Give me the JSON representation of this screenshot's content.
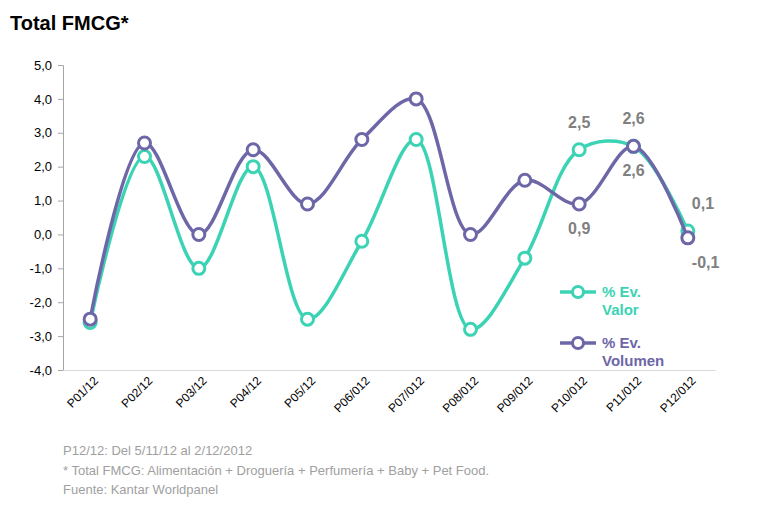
{
  "chart_data": {
    "type": "line",
    "title": "Total FMCG*",
    "categories": [
      "P01/12",
      "P02/12",
      "P03/12",
      "P04/12",
      "P05/12",
      "P06/012",
      "P07/012",
      "P08/012",
      "P09/012",
      "P10/012",
      "P11/012",
      "P12/012"
    ],
    "series": [
      {
        "name": "% Ev. Valor",
        "color": "#3cd3b5",
        "marker": "circle",
        "line_style": "solid",
        "values": [
          -2.6,
          2.3,
          -1.0,
          2.0,
          -2.5,
          -0.2,
          2.8,
          -2.8,
          -0.7,
          2.5,
          2.6,
          0.1
        ],
        "value_labels": [
          null,
          null,
          null,
          null,
          null,
          null,
          null,
          null,
          null,
          "2,5",
          "2,6",
          "0,1"
        ]
      },
      {
        "name": "% Ev. Volumen",
        "color": "#6d67a8",
        "marker": "circle",
        "line_style": "solid",
        "values": [
          -2.5,
          2.7,
          0.0,
          2.5,
          0.9,
          2.8,
          4.0,
          0.0,
          1.6,
          0.9,
          2.6,
          -0.1
        ],
        "value_labels": [
          null,
          null,
          null,
          null,
          null,
          null,
          null,
          null,
          null,
          "0,9",
          "2,6",
          "-0,1"
        ]
      }
    ],
    "ylim": [
      -4,
      5
    ],
    "yticks": [
      {
        "value": -4,
        "label": "-4,0"
      },
      {
        "value": -3,
        "label": "-3,0"
      },
      {
        "value": -2,
        "label": "-2,0"
      },
      {
        "value": -1,
        "label": "-1,0"
      },
      {
        "value": 0,
        "label": "0,0"
      },
      {
        "value": 1,
        "label": "1,0"
      },
      {
        "value": 2,
        "label": "2,0"
      },
      {
        "value": 3,
        "label": "3,0"
      },
      {
        "value": 4,
        "label": "4,0"
      },
      {
        "value": 5,
        "label": "5,0"
      }
    ],
    "grid": false,
    "legend": "lower right",
    "data_labels": true,
    "footnotes": [
      "P12/12: Del 5/11/12 al 2/12/2012",
      "* Total FMCG: Alimentación + Droguería + Perfumería + Baby + Pet Food.",
      "Fuente: Kantar Worldpanel"
    ]
  }
}
